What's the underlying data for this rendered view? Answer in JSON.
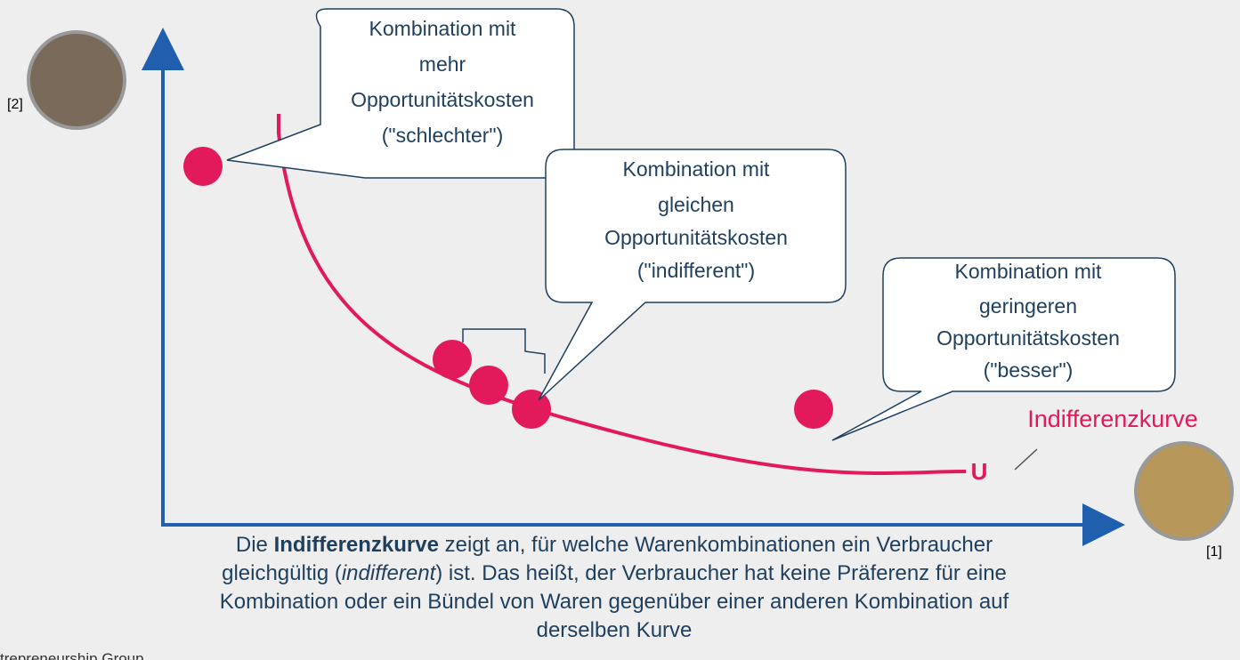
{
  "callouts": [
    {
      "lines": [
        "Kombination mit",
        "mehr",
        "Opportunitätskosten",
        "(\"schlechter\")"
      ]
    },
    {
      "lines": [
        "Kombination mit",
        "gleichen",
        "Opportunitätskosten",
        "(\"indifferent\")"
      ]
    },
    {
      "lines": [
        "Kombination mit",
        "geringeren",
        "Opportunitätskosten",
        "(\"besser\")"
      ]
    }
  ],
  "curve_label": "Indifferenzkurve",
  "u_label": "U",
  "image_refs": [
    "[2]",
    "[1]"
  ],
  "caption": [
    [
      "Die ",
      {
        "b": "Indifferenzkurve"
      },
      " zeigt an, für welche Warenkombinationen ein Verbraucher"
    ],
    [
      "gleichgültig (",
      {
        "i": "indifferent"
      },
      ") ist. Das heißt, der Verbraucher hat keine Präferenz für eine"
    ],
    [
      "Kombination oder ein Bündel von Waren gegenüber einer anderen Kombination auf"
    ],
    [
      "derselben Kurve"
    ]
  ],
  "footer": "trepreneurship Group"
}
